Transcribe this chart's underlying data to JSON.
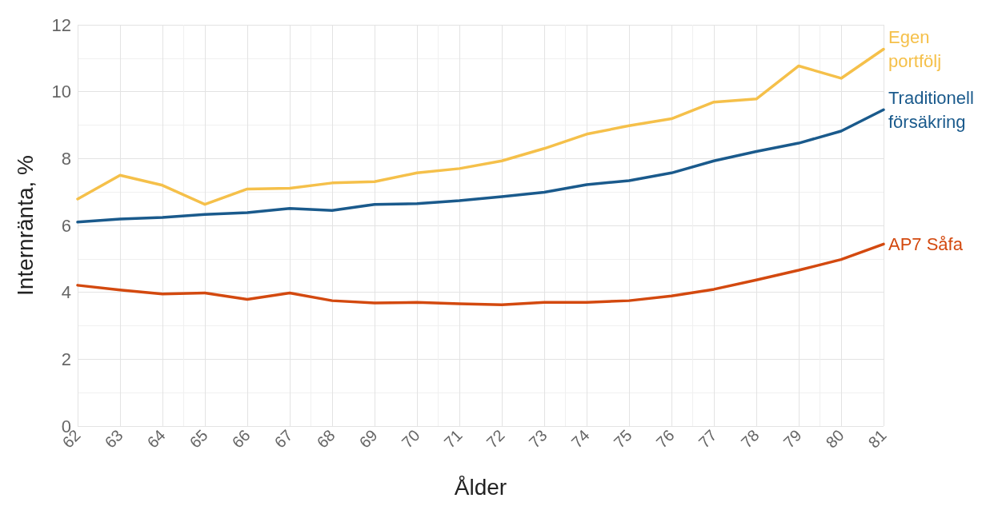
{
  "chart_data": {
    "type": "line",
    "xlabel": "Ålder",
    "ylabel": "Internränta, %",
    "x": [
      62,
      63,
      64,
      65,
      66,
      67,
      68,
      69,
      70,
      71,
      72,
      73,
      74,
      75,
      76,
      77,
      78,
      79,
      80,
      81
    ],
    "xlim": [
      62,
      81
    ],
    "xticks": [
      62,
      63,
      64,
      65,
      66,
      67,
      68,
      69,
      70,
      71,
      72,
      73,
      74,
      75,
      76,
      77,
      78,
      79,
      80,
      81
    ],
    "ylim": [
      0,
      12
    ],
    "yticks": [
      0,
      2,
      4,
      6,
      8,
      10,
      12
    ],
    "grid": true,
    "legend": false,
    "marker": "none",
    "line_style": "solid",
    "series": [
      {
        "name": "Egen portfölj",
        "color": "#f5c04a",
        "values": [
          6.79,
          7.5,
          7.2,
          6.63,
          7.09,
          7.11,
          7.27,
          7.31,
          7.57,
          7.7,
          7.93,
          8.3,
          8.73,
          8.98,
          9.19,
          9.69,
          9.78,
          10.77,
          10.4,
          11.27
        ]
      },
      {
        "name": "Traditionell försäkring",
        "color": "#1a5a8c",
        "values": [
          6.1,
          6.19,
          6.24,
          6.33,
          6.38,
          6.51,
          6.45,
          6.63,
          6.65,
          6.74,
          6.86,
          6.99,
          7.22,
          7.34,
          7.57,
          7.93,
          8.21,
          8.46,
          8.82,
          9.46
        ]
      },
      {
        "name": "AP7 Såfa",
        "color": "#d3490f",
        "values": [
          4.21,
          4.07,
          3.95,
          3.98,
          3.79,
          3.98,
          3.75,
          3.68,
          3.7,
          3.66,
          3.63,
          3.7,
          3.7,
          3.75,
          3.89,
          4.09,
          4.37,
          4.66,
          4.98,
          5.44
        ]
      }
    ]
  }
}
